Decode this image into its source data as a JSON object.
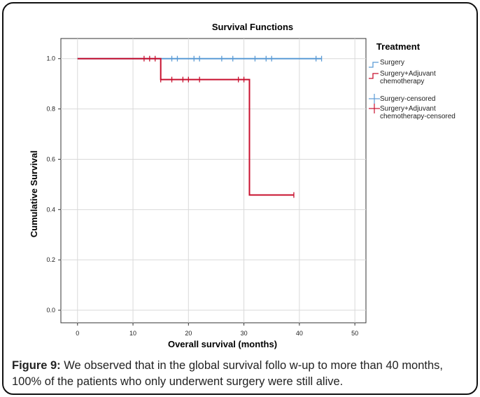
{
  "colors": {
    "surgery": "#5b9bd5",
    "adjuvant": "#c8102e",
    "grid": "#d9d9d9",
    "axis": "#333333"
  },
  "chart_data": {
    "type": "line",
    "title": "Survival Functions",
    "xlabel": "Overall survival (months)",
    "ylabel": "Cumulative Survival",
    "xlim": [
      -3,
      52
    ],
    "ylim": [
      -0.05,
      1.08
    ],
    "xticks": [
      0,
      10,
      20,
      30,
      40,
      50
    ],
    "yticks": [
      0.0,
      0.2,
      0.4,
      0.6,
      0.8,
      1.0
    ],
    "grid": true,
    "legend_title": "Treatment",
    "legend_position": "right",
    "series": [
      {
        "name": "Surgery",
        "step": [
          [
            0,
            1.0
          ],
          [
            44,
            1.0
          ]
        ],
        "censored": [
          17,
          18,
          21,
          22,
          26,
          28,
          32,
          34,
          35,
          43,
          44
        ]
      },
      {
        "name": "Surgery+Adjuvant chemotherapy",
        "step": [
          [
            0,
            1.0
          ],
          [
            15,
            1.0
          ],
          [
            15,
            0.917
          ],
          [
            31,
            0.917
          ],
          [
            31,
            0.458
          ],
          [
            39,
            0.458
          ]
        ],
        "censored_points": [
          [
            12,
            1.0
          ],
          [
            13,
            1.0
          ],
          [
            14,
            1.0
          ],
          [
            15,
            0.917
          ],
          [
            17,
            0.917
          ],
          [
            19,
            0.917
          ],
          [
            20,
            0.917
          ],
          [
            22,
            0.917
          ],
          [
            29,
            0.917
          ],
          [
            30,
            0.917
          ],
          [
            39,
            0.458
          ]
        ]
      }
    ],
    "legend": [
      {
        "label_lines": [
          "Surgery"
        ],
        "color": "surgery",
        "kind": "line"
      },
      {
        "label_lines": [
          "Surgery+Adjuvant",
          "chemotherapy"
        ],
        "color": "adjuvant",
        "kind": "line"
      },
      {
        "label_lines": [
          "Surgery-censored"
        ],
        "color": "surgery",
        "kind": "cross"
      },
      {
        "label_lines": [
          "Surgery+Adjuvant",
          "chemotherapy-censored"
        ],
        "color": "adjuvant",
        "kind": "cross"
      }
    ]
  },
  "caption": {
    "label": "Figure 9:",
    "text": " We observed that in the global survival follo w-up to more than 40 months, 100% of the patients who only underwent surgery were still alive."
  }
}
